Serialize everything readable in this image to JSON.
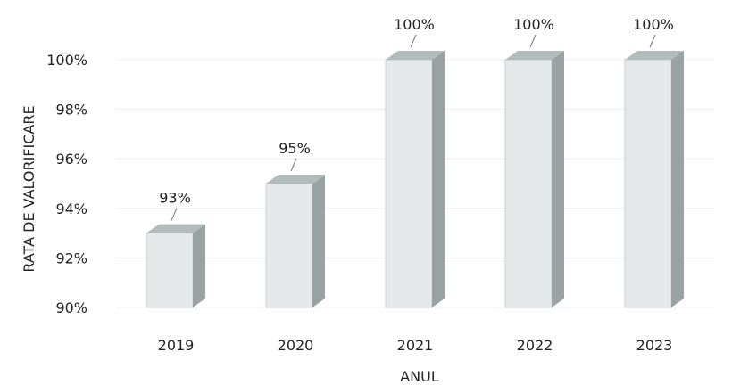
{
  "chart_data": {
    "type": "bar",
    "categories": [
      "2019",
      "2020",
      "2021",
      "2022",
      "2023"
    ],
    "values": [
      93,
      95,
      100,
      100,
      100
    ],
    "data_labels": [
      "93%",
      "95%",
      "100%",
      "100%",
      "100%"
    ],
    "title": "",
    "xlabel": "ANUL",
    "ylabel": "RATA DE VALORIFICARE",
    "ylim": [
      90,
      100
    ],
    "y_ticks": [
      90,
      92,
      94,
      96,
      98,
      100
    ],
    "y_tick_labels": [
      "90%",
      "92%",
      "94%",
      "96%",
      "98%",
      "100%"
    ],
    "grid": true,
    "legend": "none",
    "style": "3d-column",
    "colors": {
      "bar_front": "#e6e9ea",
      "bar_side": "#9aa3a4",
      "bar_top": "#b3bcbc",
      "grid": "#eeeeee"
    }
  }
}
